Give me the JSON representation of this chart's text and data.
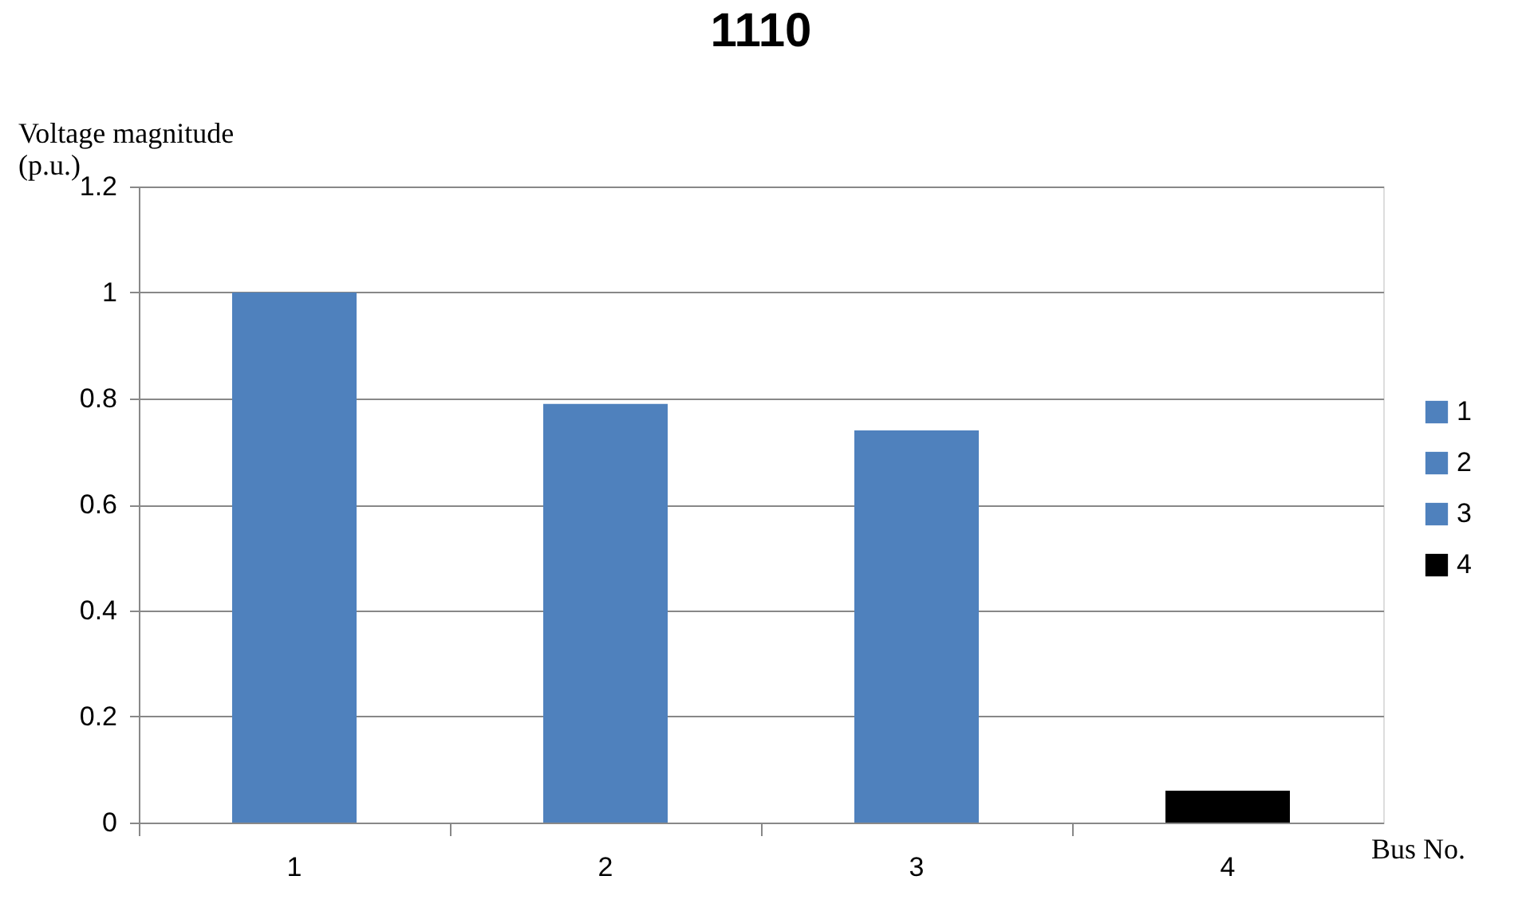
{
  "chart_data": {
    "type": "bar",
    "title": "1110",
    "xlabel": "Bus No.",
    "ylabel": "Voltage magnitude\n(p.u.)",
    "categories": [
      "1",
      "2",
      "3",
      "4"
    ],
    "series": [
      {
        "name": "1",
        "color": "#4f81bd",
        "values": [
          1.0,
          null,
          null,
          null
        ]
      },
      {
        "name": "2",
        "color": "#4f81bd",
        "values": [
          null,
          0.79,
          null,
          null
        ]
      },
      {
        "name": "3",
        "color": "#4f81bd",
        "values": [
          null,
          null,
          0.74,
          null
        ]
      },
      {
        "name": "4",
        "color": "#000000",
        "values": [
          null,
          null,
          null,
          0.06
        ]
      }
    ],
    "ylim": [
      0,
      1.2
    ],
    "yticks": [
      0,
      0.2,
      0.4,
      0.6,
      0.8,
      1,
      1.2
    ],
    "grid": "y",
    "legend": "right"
  }
}
